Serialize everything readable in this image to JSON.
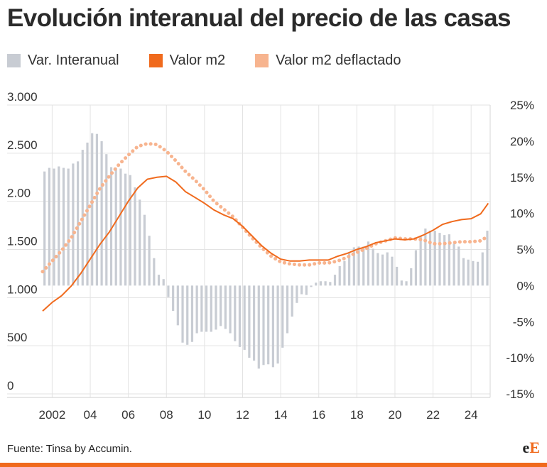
{
  "title": "Evolución interanual del precio de las casas",
  "footer": {
    "source": "Fuente: Tinsa by Accumin.",
    "logo_e1": "e",
    "logo_e2": "E"
  },
  "colors": {
    "bars": "#c8ccd3",
    "price": "#f06a1d",
    "deflated": "#f7b48f",
    "accent_bar": "#f06a1d"
  },
  "chart_data": {
    "type": "bar",
    "title": "Evolución interanual del precio de las casas",
    "legend": {
      "placement": "top-left"
    },
    "grid": true,
    "x_ticks": [
      "2002",
      "04",
      "06",
      "08",
      "10",
      "12",
      "14",
      "16",
      "18",
      "20",
      "22",
      "24"
    ],
    "x_tick_years": [
      2002,
      2004,
      2006,
      2008,
      2010,
      2012,
      2014,
      2016,
      2018,
      2020,
      2022,
      2024
    ],
    "x_range": [
      2001.5,
      2025.0
    ],
    "y_left": {
      "ticks": [
        "3.000",
        "2.500",
        "2.00",
        "1.500",
        "1.000",
        "500",
        "0"
      ],
      "tick_values": [
        3000,
        2500,
        2000,
        1500,
        1000,
        500,
        0
      ],
      "range": [
        0,
        3000
      ]
    },
    "y_right": {
      "ticks": [
        "25%",
        "20%",
        "15%",
        "10%",
        "5%",
        "0%",
        "-5%",
        "-10%",
        "-15%"
      ],
      "tick_values": [
        25,
        20,
        15,
        10,
        5,
        0,
        -5,
        -10,
        -15
      ],
      "range": [
        -15,
        25
      ]
    },
    "series": [
      {
        "name": "Var. Interanual",
        "type": "bar",
        "axis": "right",
        "x": [
          2001.6,
          2001.85,
          2002.1,
          2002.35,
          2002.6,
          2002.85,
          2003.1,
          2003.35,
          2003.6,
          2003.85,
          2004.1,
          2004.35,
          2004.6,
          2004.85,
          2005.1,
          2005.35,
          2005.6,
          2005.85,
          2006.1,
          2006.35,
          2006.6,
          2006.85,
          2007.1,
          2007.35,
          2007.6,
          2007.85,
          2008.1,
          2008.35,
          2008.6,
          2008.85,
          2009.1,
          2009.35,
          2009.6,
          2009.85,
          2010.1,
          2010.35,
          2010.6,
          2010.85,
          2011.1,
          2011.35,
          2011.6,
          2011.85,
          2012.1,
          2012.35,
          2012.6,
          2012.85,
          2013.1,
          2013.35,
          2013.6,
          2013.85,
          2014.1,
          2014.35,
          2014.6,
          2014.85,
          2015.1,
          2015.35,
          2015.6,
          2015.85,
          2016.1,
          2016.35,
          2016.6,
          2016.85,
          2017.1,
          2017.35,
          2017.6,
          2017.85,
          2018.1,
          2018.35,
          2018.6,
          2018.85,
          2019.1,
          2019.35,
          2019.6,
          2019.85,
          2020.1,
          2020.35,
          2020.6,
          2020.85,
          2021.1,
          2021.35,
          2021.6,
          2021.85,
          2022.1,
          2022.35,
          2022.6,
          2022.85,
          2023.1,
          2023.35,
          2023.6,
          2023.85,
          2024.1,
          2024.35,
          2024.6,
          2024.85
        ],
        "values": [
          15.8,
          16.3,
          16.2,
          16.5,
          16.3,
          16.2,
          16.9,
          17.2,
          18.8,
          19.8,
          21.1,
          21.0,
          20.0,
          18.2,
          16.4,
          16.3,
          16.2,
          15.5,
          15.3,
          13.6,
          11.9,
          9.8,
          6.9,
          3.8,
          1.5,
          0.9,
          -1.6,
          -3.5,
          -5.5,
          -7.9,
          -8.2,
          -7.8,
          -6.6,
          -6.4,
          -6.4,
          -6.4,
          -6.1,
          -5.6,
          -6.0,
          -6.6,
          -7.7,
          -8.5,
          -8.9,
          -10.0,
          -10.4,
          -11.5,
          -11.0,
          -10.9,
          -11.3,
          -10.8,
          -8.6,
          -6.6,
          -4.3,
          -2.4,
          -1.2,
          -1.3,
          -0.2,
          0.4,
          0.6,
          0.6,
          0.5,
          1.5,
          2.7,
          3.4,
          4.5,
          5.3,
          5.4,
          5.4,
          6.1,
          5.1,
          4.5,
          4.3,
          4.6,
          4.0,
          2.6,
          0.7,
          0.6,
          2.4,
          4.9,
          6.9,
          7.9,
          7.6,
          7.6,
          7.3,
          7.0,
          7.1,
          5.8,
          5.4,
          3.8,
          3.6,
          3.4,
          3.3,
          4.6,
          7.6
        ]
      },
      {
        "name": "Valor m2",
        "type": "line",
        "axis": "left",
        "x": [
          2001.5,
          2002.0,
          2002.5,
          2003.0,
          2003.5,
          2004.0,
          2004.5,
          2005.0,
          2005.5,
          2006.0,
          2006.5,
          2007.0,
          2007.5,
          2008.0,
          2008.5,
          2009.0,
          2009.5,
          2010.0,
          2010.5,
          2011.0,
          2011.5,
          2012.0,
          2012.5,
          2013.0,
          2013.5,
          2014.0,
          2014.5,
          2015.0,
          2015.5,
          2016.0,
          2016.5,
          2017.0,
          2017.5,
          2018.0,
          2018.5,
          2019.0,
          2019.5,
          2020.0,
          2020.5,
          2021.0,
          2021.5,
          2022.0,
          2022.5,
          2023.0,
          2023.5,
          2024.0,
          2024.5,
          2024.9
        ],
        "values": [
          860,
          950,
          1020,
          1120,
          1250,
          1400,
          1550,
          1680,
          1840,
          2000,
          2140,
          2230,
          2250,
          2260,
          2200,
          2100,
          2040,
          1980,
          1910,
          1860,
          1820,
          1740,
          1640,
          1540,
          1460,
          1400,
          1380,
          1380,
          1390,
          1390,
          1390,
          1430,
          1460,
          1500,
          1530,
          1570,
          1590,
          1610,
          1600,
          1610,
          1650,
          1700,
          1760,
          1790,
          1810,
          1820,
          1870,
          1980
        ]
      },
      {
        "name": "Valor m2 deflactado",
        "type": "line",
        "axis": "left",
        "x": [
          2001.5,
          2002.0,
          2002.5,
          2003.0,
          2003.5,
          2004.0,
          2004.5,
          2005.0,
          2005.5,
          2006.0,
          2006.5,
          2007.0,
          2007.5,
          2008.0,
          2008.5,
          2009.0,
          2009.5,
          2010.0,
          2010.5,
          2011.0,
          2011.5,
          2012.0,
          2012.5,
          2013.0,
          2013.5,
          2014.0,
          2014.5,
          2015.0,
          2015.5,
          2016.0,
          2016.5,
          2017.0,
          2017.5,
          2018.0,
          2018.5,
          2019.0,
          2019.5,
          2020.0,
          2020.5,
          2021.0,
          2021.5,
          2022.0,
          2022.5,
          2023.0,
          2023.5,
          2024.0,
          2024.5,
          2024.9
        ],
        "values": [
          1270,
          1380,
          1490,
          1620,
          1790,
          1960,
          2130,
          2260,
          2380,
          2480,
          2570,
          2600,
          2590,
          2520,
          2420,
          2310,
          2220,
          2120,
          2000,
          1920,
          1840,
          1730,
          1620,
          1520,
          1430,
          1370,
          1350,
          1340,
          1340,
          1360,
          1360,
          1380,
          1420,
          1470,
          1510,
          1560,
          1590,
          1620,
          1610,
          1610,
          1600,
          1560,
          1560,
          1570,
          1580,
          1580,
          1590,
          1640
        ]
      }
    ]
  }
}
